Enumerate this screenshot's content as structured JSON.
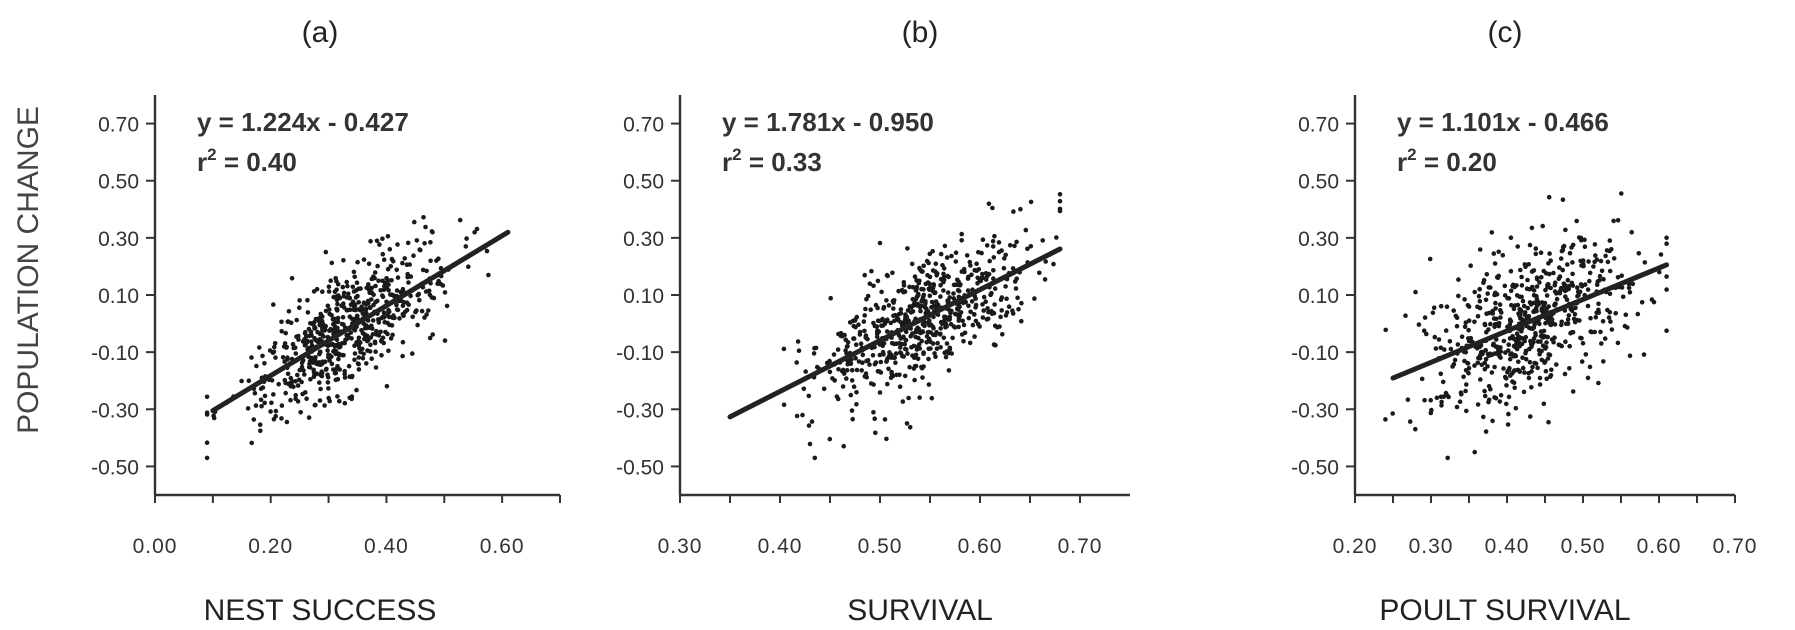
{
  "figure": {
    "ylabel": "POPULATION CHANGE"
  },
  "chart_data": [
    {
      "type": "scatter",
      "panel": "(a)",
      "xlabel": "NEST SUCCESS",
      "ylabel": "POPULATION CHANGE",
      "equation": "y = 1.224x - 0.427",
      "r2_prefix": "r",
      "r2_sup": "2",
      "r2_value": " = 0.40",
      "slope": 1.224,
      "intercept": -0.427,
      "fit_x": [
        0.1,
        0.61
      ],
      "xlim": [
        0.0,
        0.7
      ],
      "ylim": [
        -0.6,
        0.8
      ],
      "x_ticks": [
        0.0,
        0.1,
        0.2,
        0.3,
        0.4,
        0.5,
        0.6,
        0.7
      ],
      "x_tick_labels": [
        {
          "value": 0.0,
          "label": "0.00"
        },
        {
          "value": 0.2,
          "label": "0.20"
        },
        {
          "value": 0.4,
          "label": "0.40"
        },
        {
          "value": 0.6,
          "label": "0.60"
        }
      ],
      "y_ticks": [
        -0.5,
        -0.3,
        -0.1,
        0.1,
        0.3,
        0.5,
        0.7
      ],
      "y_tick_labels": [
        "-0.50",
        "-0.30",
        "-0.10",
        "0.10",
        "0.30",
        "0.50",
        "0.70"
      ],
      "n_points": 650,
      "x_mean": 0.33,
      "x_sd": 0.085,
      "residual_sd": 0.1,
      "x_range": [
        0.09,
        0.62
      ],
      "y_range": [
        -0.47,
        0.66
      ],
      "grid": false
    },
    {
      "type": "scatter",
      "panel": "(b)",
      "xlabel": "SURVIVAL",
      "ylabel": "",
      "equation": "y = 1.781x - 0.950",
      "r2_prefix": "r",
      "r2_sup": "2",
      "r2_value": " = 0.33",
      "slope": 1.781,
      "intercept": -0.95,
      "fit_x": [
        0.35,
        0.68
      ],
      "xlim": [
        0.3,
        0.75
      ],
      "ylim": [
        -0.6,
        0.8
      ],
      "x_ticks": [
        0.3,
        0.35,
        0.4,
        0.45,
        0.5,
        0.55,
        0.6,
        0.65,
        0.7
      ],
      "x_tick_labels": [
        {
          "value": 0.3,
          "label": "0.30"
        },
        {
          "value": 0.4,
          "label": "0.40"
        },
        {
          "value": 0.5,
          "label": "0.50"
        },
        {
          "value": 0.6,
          "label": "0.60"
        },
        {
          "value": 0.7,
          "label": "0.70"
        }
      ],
      "y_ticks": [
        -0.5,
        -0.3,
        -0.1,
        0.1,
        0.3,
        0.5,
        0.7
      ],
      "y_tick_labels": [
        "-0.50",
        "-0.30",
        "-0.10",
        "0.10",
        "0.30",
        "0.50",
        "0.70"
      ],
      "n_points": 650,
      "x_mean": 0.54,
      "x_sd": 0.055,
      "residual_sd": 0.11,
      "x_range": [
        0.35,
        0.68
      ],
      "y_range": [
        -0.47,
        0.66
      ],
      "grid": false
    },
    {
      "type": "scatter",
      "panel": "(c)",
      "xlabel": "POULT SURVIVAL",
      "ylabel": "",
      "equation": "y = 1.101x - 0.466",
      "r2_prefix": "r",
      "r2_sup": "2",
      "r2_value": " = 0.20",
      "slope": 1.101,
      "intercept": -0.466,
      "fit_x": [
        0.25,
        0.61
      ],
      "xlim": [
        0.2,
        0.7
      ],
      "ylim": [
        -0.6,
        0.8
      ],
      "x_ticks": [
        0.2,
        0.25,
        0.3,
        0.35,
        0.4,
        0.45,
        0.5,
        0.55,
        0.6,
        0.65,
        0.7
      ],
      "x_tick_labels": [
        {
          "value": 0.2,
          "label": "0.20"
        },
        {
          "value": 0.3,
          "label": "0.30"
        },
        {
          "value": 0.4,
          "label": "0.40"
        },
        {
          "value": 0.5,
          "label": "0.50"
        },
        {
          "value": 0.6,
          "label": "0.60"
        },
        {
          "value": 0.7,
          "label": "0.70"
        }
      ],
      "y_ticks": [
        -0.5,
        -0.3,
        -0.1,
        0.1,
        0.3,
        0.5,
        0.7
      ],
      "y_tick_labels": [
        "-0.50",
        "-0.30",
        "-0.10",
        "0.10",
        "0.30",
        "0.50",
        "0.70"
      ],
      "n_points": 650,
      "x_mean": 0.43,
      "x_sd": 0.07,
      "residual_sd": 0.13,
      "x_range": [
        0.24,
        0.61
      ],
      "y_range": [
        -0.47,
        0.66
      ],
      "grid": false
    }
  ]
}
